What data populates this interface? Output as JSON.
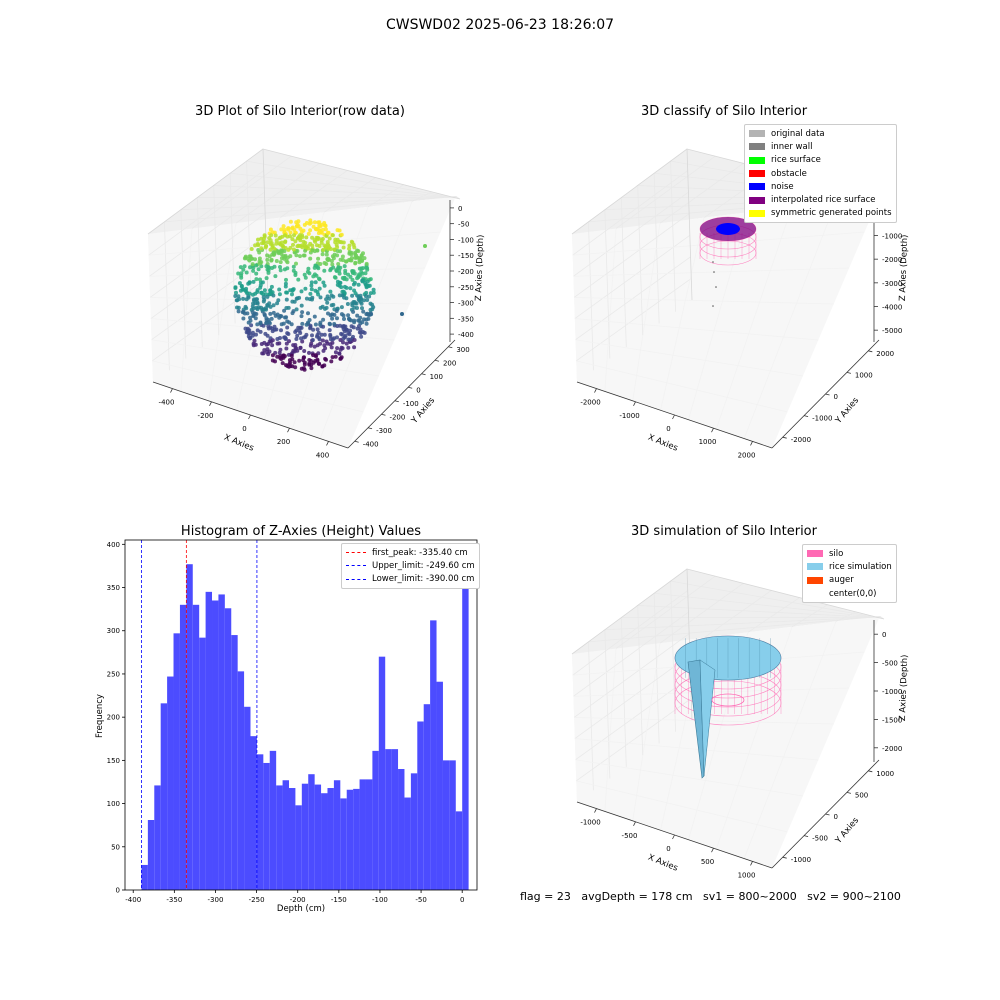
{
  "figure": {
    "suptitle": "CWSWD02 2025-06-23 18:26:07",
    "footer": "flag = 23   avgDepth = 178 cm   sv1 = 800~2000   sv2 = 900~2100"
  },
  "chart_data": [
    {
      "type": "scatter",
      "panel": "3d-raw",
      "title": "3D Plot of Silo Interior(row data)",
      "xlabel": "X Axies",
      "ylabel": "Y Axies",
      "zlabel": "Z Axies (Depth)",
      "x_ticks": [
        "-400",
        "-200",
        "0",
        "200",
        "400"
      ],
      "y_ticks": [
        "300",
        "200",
        "100",
        "0",
        "-100",
        "-200",
        "-300",
        "-400"
      ],
      "z_ticks": [
        "0",
        "-50",
        "-100",
        "-150",
        "-200",
        "-250",
        "-300",
        "-350",
        "-400"
      ],
      "colormap": "viridis"
    },
    {
      "type": "scatter",
      "panel": "3d-classify",
      "title": "3D classify of Silo Interior",
      "xlabel": "X Axies",
      "ylabel": "Y Axies",
      "zlabel": "Z Axies (Depth)",
      "x_ticks": [
        "-2000",
        "-1000",
        "0",
        "1000",
        "2000"
      ],
      "y_ticks": [
        "2000",
        "1000",
        "0",
        "-1000",
        "-2000"
      ],
      "z_ticks": [
        "0",
        "-1000",
        "-2000",
        "-3000",
        "-4000",
        "-5000"
      ],
      "legend": [
        {
          "label": "original data",
          "color": "#b3b3b3"
        },
        {
          "label": "inner wall",
          "color": "#808080"
        },
        {
          "label": "rice surface",
          "color": "#00ff00"
        },
        {
          "label": "obstacle",
          "color": "#ff0000"
        },
        {
          "label": "noise",
          "color": "#0000ff"
        },
        {
          "label": "interpolated rice surface",
          "color": "#800080"
        },
        {
          "label": "symmetric generated points",
          "color": "#ffff00"
        }
      ]
    },
    {
      "type": "bar",
      "panel": "histogram",
      "title": "Histogram of Z-Axies (Height) Values",
      "xlabel": "Depth (cm)",
      "ylabel": "Frequency",
      "bar_color": "#4c4cff",
      "xlim": [
        -410,
        18
      ],
      "ylim": [
        0,
        405
      ],
      "x_ticks": [
        -400,
        -350,
        -300,
        -250,
        -200,
        -150,
        -100,
        -50,
        0
      ],
      "y_ticks": [
        0,
        50,
        100,
        150,
        200,
        250,
        300,
        350,
        400
      ],
      "bins": {
        "x_start": -390,
        "width": 7.8,
        "values": [
          29,
          81,
          121,
          216,
          247,
          297,
          330,
          377,
          330,
          292,
          345,
          335,
          342,
          326,
          295,
          253,
          212,
          178,
          157,
          147,
          161,
          121,
          127,
          118,
          98,
          123,
          134,
          122,
          112,
          118,
          127,
          106,
          116,
          117,
          128,
          128,
          161,
          270,
          163,
          163,
          140,
          107,
          135,
          195,
          215,
          312,
          241,
          150,
          150,
          91,
          385
        ]
      },
      "vlines": [
        {
          "label": "first_peak: -335.40 cm",
          "x": -335.4,
          "color": "#ff0000"
        },
        {
          "label": "Upper_limit: -249.60 cm",
          "x": -249.6,
          "color": "#0000ff"
        },
        {
          "label": "Lower_limit: -390.00 cm",
          "x": -390.0,
          "color": "#0000ff"
        }
      ]
    },
    {
      "type": "area",
      "panel": "3d-simulation",
      "title": "3D simulation of Silo Interior",
      "xlabel": "X Axies",
      "ylabel": "Y Axies",
      "zlabel": "Z Axies (Depth)",
      "x_ticks": [
        "-1000",
        "-500",
        "0",
        "500",
        "1000"
      ],
      "y_ticks": [
        "1000",
        "500",
        "0",
        "-500",
        "-1000"
      ],
      "z_ticks": [
        "0",
        "-500",
        "-1000",
        "-1500",
        "-2000"
      ],
      "legend": [
        {
          "label": "silo",
          "color": "#ff69b4"
        },
        {
          "label": "rice simulation",
          "color": "#87ceeb"
        },
        {
          "label": "auger",
          "color": "#ff4500"
        },
        {
          "label": "center(0,0)",
          "color": "#ffffff"
        }
      ]
    }
  ]
}
